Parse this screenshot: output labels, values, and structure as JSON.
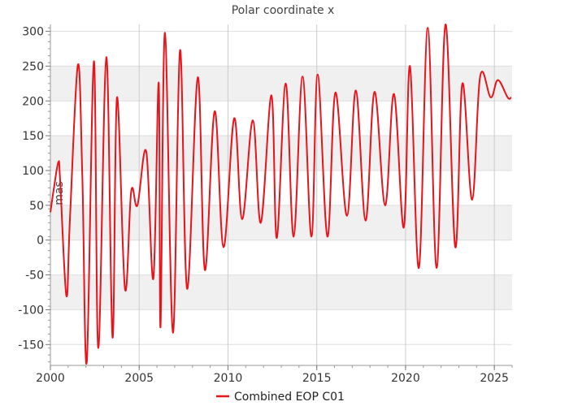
{
  "chart_data": {
    "type": "line",
    "title": "Polar coordinate x",
    "xlabel": "",
    "ylabel": "mas",
    "xlim": [
      2000.0,
      2026.0
    ],
    "ylim": [
      -180,
      310
    ],
    "x_ticks": [
      2000,
      2005,
      2010,
      2015,
      2020,
      2025
    ],
    "y_ticks": [
      -150,
      -100,
      -50,
      0,
      50,
      100,
      150,
      200,
      250,
      300
    ],
    "grid": true,
    "legend": "bottom-center",
    "colors": {
      "series": "#e8141c",
      "band": "#f0f0f0",
      "grid": "#cccccc"
    },
    "series": [
      {
        "name": "Combined EOP C01",
        "x": [
          2000.0,
          2000.2,
          2000.45,
          2000.55,
          2000.9,
          2001.1,
          2001.55,
          2001.8,
          2002.05,
          2002.45,
          2002.7,
          2003.15,
          2003.5,
          2003.75,
          2004.2,
          2004.55,
          2004.9,
          2005.4,
          2005.8,
          2006.1,
          2006.2,
          2006.45,
          2006.9,
          2007.3,
          2007.7,
          2008.3,
          2008.7,
          2009.25,
          2009.75,
          2010.35,
          2010.8,
          2011.4,
          2011.85,
          2012.45,
          2012.75,
          2013.25,
          2013.7,
          2014.2,
          2014.7,
          2015.05,
          2015.6,
          2016.05,
          2016.7,
          2017.2,
          2017.75,
          2018.25,
          2018.85,
          2019.35,
          2019.9,
          2020.25,
          2020.75,
          2021.25,
          2021.75,
          2022.25,
          2022.8,
          2023.2,
          2023.75,
          2024.2,
          2024.8,
          2025.2,
          2025.75,
          2025.95
        ],
        "y": [
          40,
          75,
          112,
          85,
          -80,
          30,
          252,
          90,
          -175,
          257,
          -155,
          263,
          -140,
          205,
          -70,
          70,
          50,
          127,
          -55,
          226,
          -125,
          298,
          -133,
          273,
          -70,
          234,
          -43,
          185,
          -10,
          175,
          30,
          172,
          25,
          208,
          3,
          225,
          5,
          235,
          5,
          238,
          5,
          212,
          35,
          215,
          28,
          213,
          50,
          210,
          18,
          250,
          -40,
          305,
          -40,
          310,
          -10,
          225,
          58,
          235,
          205,
          230,
          205,
          205
        ]
      }
    ]
  }
}
